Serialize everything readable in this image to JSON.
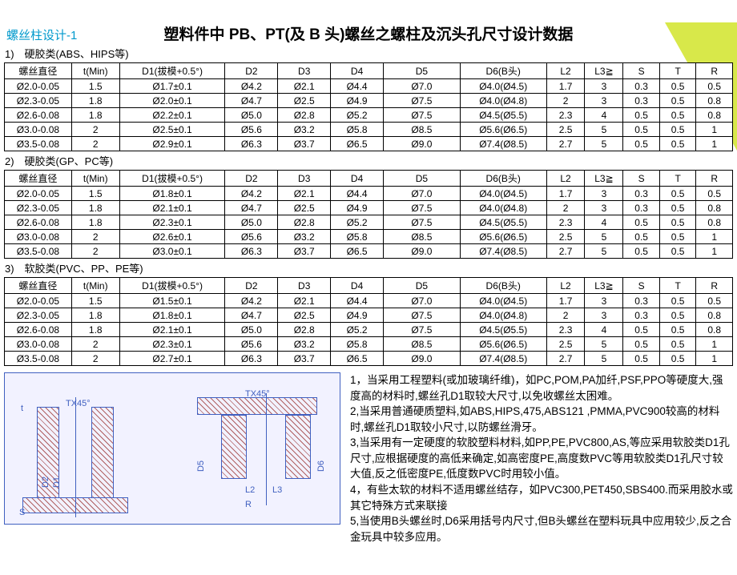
{
  "page_label": "螺丝柱设计-1",
  "main_title": "塑料件中 PB、PT(及 B 头)螺丝之螺柱及沉头孔尺寸设计数据",
  "columns": [
    "螺丝直径",
    "t(Min)",
    "D1(拔模+0.5°)",
    "D2",
    "D3",
    "D4",
    "D5",
    "D6(B头)",
    "L2",
    "L3≧",
    "S",
    "T",
    "R"
  ],
  "sections": [
    {
      "label": "1)　硬胶类(ABS、HIPS等)",
      "rows": [
        [
          "Ø2.0-0.05",
          "1.5",
          "Ø1.7±0.1",
          "Ø4.2",
          "Ø2.1",
          "Ø4.4",
          "Ø7.0",
          "Ø4.0(Ø4.5)",
          "1.7",
          "3",
          "0.3",
          "0.5",
          "0.5"
        ],
        [
          "Ø2.3-0.05",
          "1.8",
          "Ø2.0±0.1",
          "Ø4.7",
          "Ø2.5",
          "Ø4.9",
          "Ø7.5",
          "Ø4.0(Ø4.8)",
          "2",
          "3",
          "0.3",
          "0.5",
          "0.8"
        ],
        [
          "Ø2.6-0.08",
          "1.8",
          "Ø2.2±0.1",
          "Ø5.0",
          "Ø2.8",
          "Ø5.2",
          "Ø7.5",
          "Ø4.5(Ø5.5)",
          "2.3",
          "4",
          "0.5",
          "0.5",
          "0.8"
        ],
        [
          "Ø3.0-0.08",
          "2",
          "Ø2.5±0.1",
          "Ø5.6",
          "Ø3.2",
          "Ø5.8",
          "Ø8.5",
          "Ø5.6(Ø6.5)",
          "2.5",
          "5",
          "0.5",
          "0.5",
          "1"
        ],
        [
          "Ø3.5-0.08",
          "2",
          "Ø2.9±0.1",
          "Ø6.3",
          "Ø3.7",
          "Ø6.5",
          "Ø9.0",
          "Ø7.4(Ø8.5)",
          "2.7",
          "5",
          "0.5",
          "0.5",
          "1"
        ]
      ]
    },
    {
      "label": "2)　硬胶类(GP、PC等)",
      "rows": [
        [
          "Ø2.0-0.05",
          "1.5",
          "Ø1.8±0.1",
          "Ø4.2",
          "Ø2.1",
          "Ø4.4",
          "Ø7.0",
          "Ø4.0(Ø4.5)",
          "1.7",
          "3",
          "0.3",
          "0.5",
          "0.5"
        ],
        [
          "Ø2.3-0.05",
          "1.8",
          "Ø2.1±0.1",
          "Ø4.7",
          "Ø2.5",
          "Ø4.9",
          "Ø7.5",
          "Ø4.0(Ø4.8)",
          "2",
          "3",
          "0.3",
          "0.5",
          "0.8"
        ],
        [
          "Ø2.6-0.08",
          "1.8",
          "Ø2.3±0.1",
          "Ø5.0",
          "Ø2.8",
          "Ø5.2",
          "Ø7.5",
          "Ø4.5(Ø5.5)",
          "2.3",
          "4",
          "0.5",
          "0.5",
          "0.8"
        ],
        [
          "Ø3.0-0.08",
          "2",
          "Ø2.6±0.1",
          "Ø5.6",
          "Ø3.2",
          "Ø5.8",
          "Ø8.5",
          "Ø5.6(Ø6.5)",
          "2.5",
          "5",
          "0.5",
          "0.5",
          "1"
        ],
        [
          "Ø3.5-0.08",
          "2",
          "Ø3.0±0.1",
          "Ø6.3",
          "Ø3.7",
          "Ø6.5",
          "Ø9.0",
          "Ø7.4(Ø8.5)",
          "2.7",
          "5",
          "0.5",
          "0.5",
          "1"
        ]
      ]
    },
    {
      "label": "3)　软胶类(PVC、PP、PE等)",
      "rows": [
        [
          "Ø2.0-0.05",
          "1.5",
          "Ø1.5±0.1",
          "Ø4.2",
          "Ø2.1",
          "Ø4.4",
          "Ø7.0",
          "Ø4.0(Ø4.5)",
          "1.7",
          "3",
          "0.3",
          "0.5",
          "0.5"
        ],
        [
          "Ø2.3-0.05",
          "1.8",
          "Ø1.8±0.1",
          "Ø4.7",
          "Ø2.5",
          "Ø4.9",
          "Ø7.5",
          "Ø4.0(Ø4.8)",
          "2",
          "3",
          "0.3",
          "0.5",
          "0.8"
        ],
        [
          "Ø2.6-0.08",
          "1.8",
          "Ø2.1±0.1",
          "Ø5.0",
          "Ø2.8",
          "Ø5.2",
          "Ø7.5",
          "Ø4.5(Ø5.5)",
          "2.3",
          "4",
          "0.5",
          "0.5",
          "0.8"
        ],
        [
          "Ø3.0-0.08",
          "2",
          "Ø2.3±0.1",
          "Ø5.6",
          "Ø3.2",
          "Ø5.8",
          "Ø8.5",
          "Ø5.6(Ø6.5)",
          "2.5",
          "5",
          "0.5",
          "0.5",
          "1"
        ],
        [
          "Ø3.5-0.08",
          "2",
          "Ø2.7±0.1",
          "Ø6.3",
          "Ø3.7",
          "Ø6.5",
          "Ø9.0",
          "Ø7.4(Ø8.5)",
          "2.7",
          "5",
          "0.5",
          "0.5",
          "1"
        ]
      ]
    }
  ],
  "diagram": {
    "tx45_left": "TX45°",
    "tx45_right": "TX45°",
    "d1": "D1",
    "d2": "D2",
    "d5": "D5",
    "d6": "D6",
    "l2": "L2",
    "l3": "L3",
    "s": "S",
    "t": "t",
    "r": "R"
  },
  "notes": {
    "n1": "1，当采用工程塑料(或加玻璃纤维)，如PC,POM,PA加纤,PSF,PPO等硬度大,强度高的材料时,螺丝孔D1取较大尺寸,以免收螺丝太困难。",
    "n2": "2,当采用普通硬质塑料,如ABS,HIPS,475,ABS121 ,PMMA,PVC900较高的材料时,螺丝孔D1取较小尺寸,以防螺丝滑牙。",
    "n3": "3,当采用有一定硬度的软胶塑料材料,如PP,PE,PVC800,AS,等应采用软胶类D1孔尺寸,应根据硬度的高低来确定,如高密度PE,高度数PVC等用软胶类D1孔尺寸较大值,反之低密度PE,低度数PVC时用较小值。",
    "n4": "4，有些太软的材料不适用螺丝结存，如PVC300,PET450,SBS400.而采用胶水或其它特殊方式来联接",
    "n5": "5,当使用B头螺丝时,D6采用括号内尺寸,但B头螺丝在塑料玩具中应用较少,反之合金玩具中较多应用。"
  }
}
